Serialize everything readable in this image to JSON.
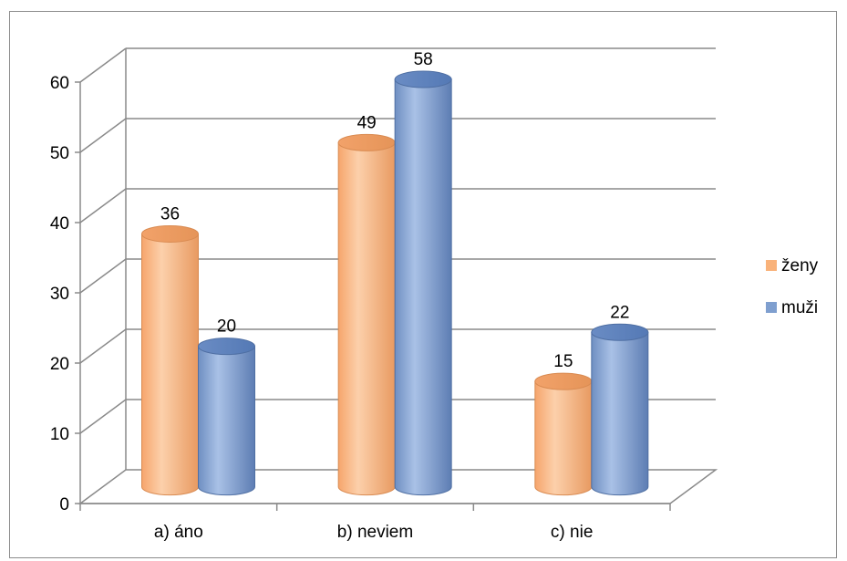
{
  "chart_data": {
    "type": "bar",
    "style": "3d-cylinder",
    "categories": [
      "a) áno",
      "b) neviem",
      "c) nie"
    ],
    "series": [
      {
        "name": "ženy",
        "values": [
          36,
          49,
          15
        ],
        "color": "#f9b27a"
      },
      {
        "name": "muži",
        "values": [
          20,
          58,
          22
        ],
        "color": "#7f9fcf"
      }
    ],
    "yticks": [
      "0",
      "10",
      "20",
      "30",
      "40",
      "50",
      "60"
    ],
    "ylim": [
      0,
      70
    ],
    "grid": true,
    "legend_position": "right"
  }
}
